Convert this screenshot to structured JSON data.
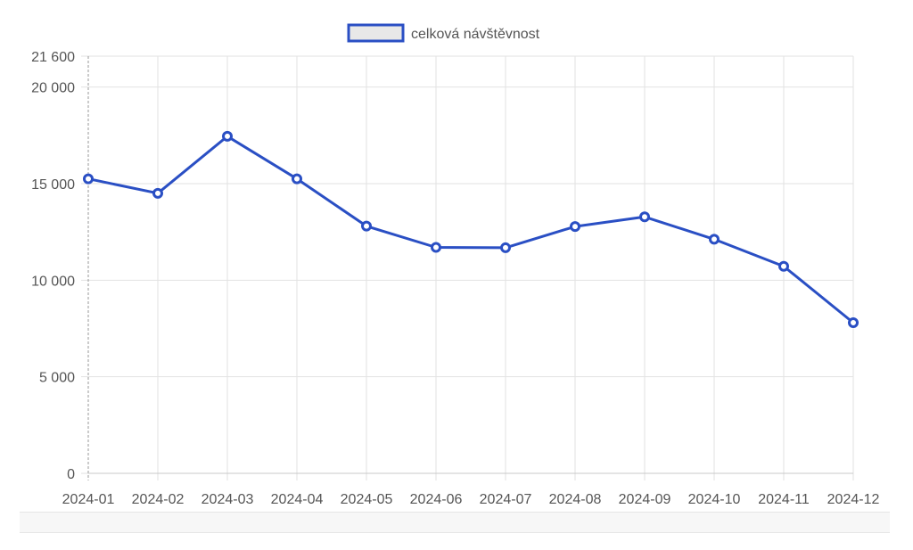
{
  "chart_data": {
    "type": "line",
    "categories": [
      "2024-01",
      "2024-02",
      "2024-03",
      "2024-04",
      "2024-05",
      "2024-06",
      "2024-07",
      "2024-08",
      "2024-09",
      "2024-10",
      "2024-11",
      "2024-12"
    ],
    "series": [
      {
        "name": "celková návštěvnost",
        "values": [
          15250,
          14500,
          17450,
          15250,
          12800,
          11700,
          11680,
          12780,
          13280,
          12120,
          10720,
          7800
        ],
        "color": "#2a4fc4",
        "legend_fill": "#e8e8e8"
      }
    ],
    "yticks": [
      0,
      5000,
      10000,
      15000,
      20000,
      21600
    ],
    "ytick_labels": [
      "0",
      "5 000",
      "10 000",
      "15 000",
      "20 000",
      "21 600"
    ],
    "ylim": [
      0,
      21600
    ],
    "title": "",
    "xlabel": "",
    "ylabel": "",
    "grid": true,
    "legend_position": "top-center"
  }
}
